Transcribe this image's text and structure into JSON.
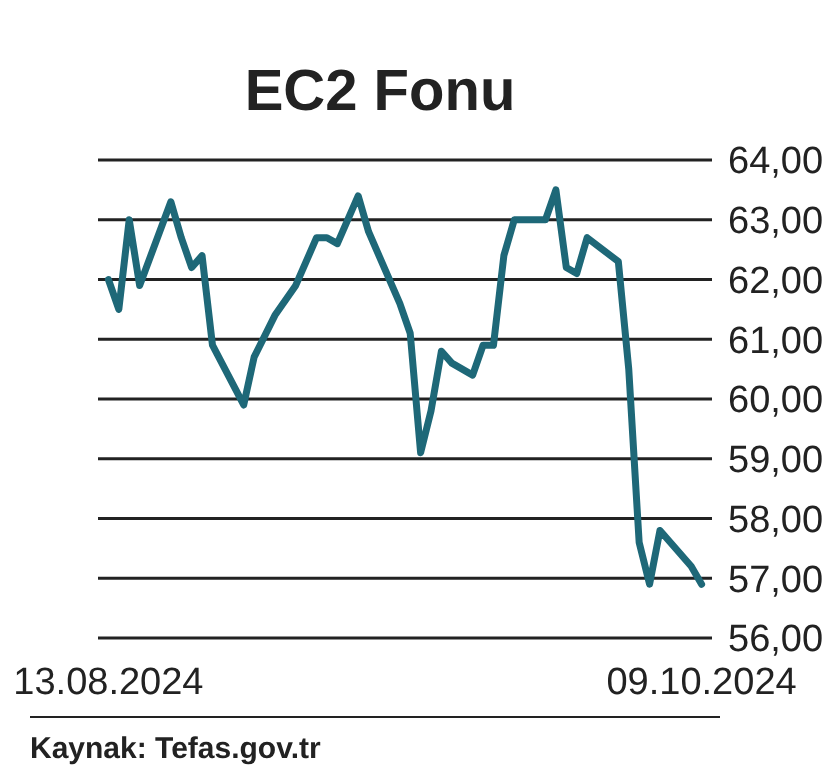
{
  "chart_data": {
    "type": "line",
    "title": "EC2 Fonu",
    "x": [
      "2024-08-13",
      "2024-08-14",
      "2024-08-15",
      "2024-08-16",
      "2024-08-19",
      "2024-08-20",
      "2024-08-21",
      "2024-08-22",
      "2024-08-23",
      "2024-08-26",
      "2024-08-27",
      "2024-08-29",
      "2024-08-31",
      "2024-09-02",
      "2024-09-03",
      "2024-09-04",
      "2024-09-06",
      "2024-09-07",
      "2024-09-10",
      "2024-09-11",
      "2024-09-12",
      "2024-09-13",
      "2024-09-14",
      "2024-09-15",
      "2024-09-17",
      "2024-09-18",
      "2024-09-19",
      "2024-09-20",
      "2024-09-21",
      "2024-09-24",
      "2024-09-25",
      "2024-09-26",
      "2024-09-27",
      "2024-09-28",
      "2024-10-01",
      "2024-10-02",
      "2024-10-03",
      "2024-10-04",
      "2024-10-05",
      "2024-10-08",
      "2024-10-09"
    ],
    "series": [
      {
        "color": "#1e6878",
        "values": [
          62.0,
          61.5,
          63.0,
          61.9,
          63.3,
          62.7,
          62.2,
          62.4,
          60.9,
          59.9,
          60.7,
          61.4,
          61.9,
          62.7,
          62.7,
          62.6,
          63.4,
          62.8,
          61.6,
          61.1,
          59.1,
          59.8,
          60.8,
          60.6,
          60.4,
          60.9,
          60.9,
          62.4,
          63.0,
          63.0,
          63.5,
          62.2,
          62.1,
          62.7,
          62.3,
          60.5,
          57.6,
          56.9,
          57.8,
          57.2,
          56.9
        ]
      }
    ],
    "xlim": [
      "2024-08-12",
      "2024-10-10"
    ],
    "xticks": [
      {
        "value": "2024-08-13",
        "label": "13.08.2024"
      },
      {
        "value": "2024-10-09",
        "label": "09.10.2024"
      }
    ],
    "ylim": [
      56,
      64
    ],
    "yticks": [
      {
        "value": 56,
        "label": "56,00"
      },
      {
        "value": 57,
        "label": "57,00"
      },
      {
        "value": 58,
        "label": "58,00"
      },
      {
        "value": 59,
        "label": "59,00"
      },
      {
        "value": 60,
        "label": "60,00"
      },
      {
        "value": 61,
        "label": "61,00"
      },
      {
        "value": 62,
        "label": "62,00"
      },
      {
        "value": 63,
        "label": "63,00"
      },
      {
        "value": 64,
        "label": "64,00"
      }
    ],
    "grid": "y",
    "line_style": "solid",
    "annotations": [
      "Kaynak: Tefas.gov.tr"
    ]
  }
}
